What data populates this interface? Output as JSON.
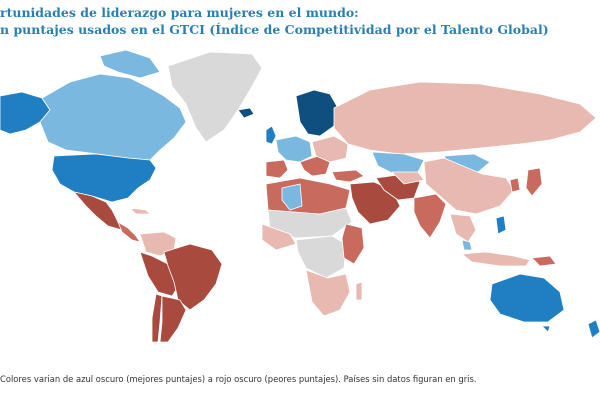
{
  "title": {
    "line1": "rtunidades de liderazgo para mujeres en el mundo:",
    "line2": "n puntajes usados en el GTCI (Índice de Competitividad por el Talento Global)"
  },
  "footnote": "Colores varian de azul oscuro (mejores puntajes) a rojo oscuro (peores puntajes). Países sin datos figuran en gris.",
  "palette": {
    "dark_blue": "#0f4f7f",
    "blue": "#1f7fc2",
    "light_blue": "#7ab8e0",
    "light_red": "#e8b9b0",
    "red": "#c96a5f",
    "dark_red": "#a94a3f",
    "no_data": "#d9d9d9",
    "ocean": "#ffffff",
    "title": "#2a7fb0"
  },
  "legend": {
    "scale": [
      "dark_blue",
      "blue",
      "light_blue",
      "light_red",
      "red",
      "dark_red"
    ],
    "no_data": "no_data"
  }
}
